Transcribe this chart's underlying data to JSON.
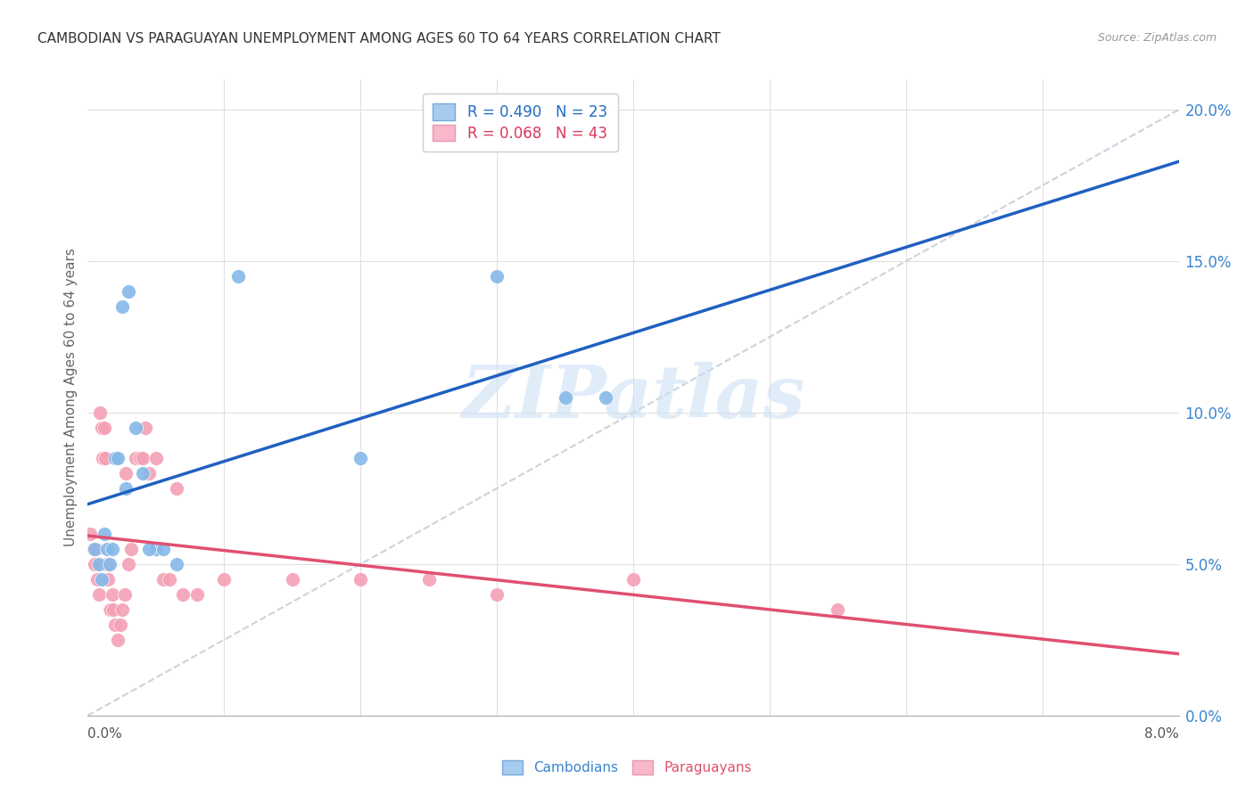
{
  "title": "CAMBODIAN VS PARAGUAYAN UNEMPLOYMENT AMONG AGES 60 TO 64 YEARS CORRELATION CHART",
  "source": "Source: ZipAtlas.com",
  "ylabel": "Unemployment Among Ages 60 to 64 years",
  "xlim": [
    0.0,
    8.0
  ],
  "ylim": [
    0.0,
    21.0
  ],
  "yticks": [
    0,
    5,
    10,
    15,
    20
  ],
  "ytick_labels": [
    "0.0%",
    "5.0%",
    "10.0%",
    "15.0%",
    "20.0%"
  ],
  "cambodian_color": "#85b8e8",
  "paraguayan_color": "#f4a0b5",
  "trendline_cambodian_color": "#2060c0",
  "trendline_paraguayan_color": "#e05070",
  "diagonal_color": "#c8cdd8",
  "background_color": "#ffffff",
  "grid_color": "#e0e0e0",
  "watermark": "ZIPatlas",
  "cambodian_x": [
    0.05,
    0.08,
    0.1,
    0.12,
    0.14,
    0.16,
    0.18,
    0.2,
    0.22,
    0.25,
    0.28,
    0.3,
    0.35,
    0.4,
    0.5,
    0.55,
    0.65,
    1.1,
    2.0,
    3.0,
    3.5,
    3.8,
    0.45
  ],
  "cambodian_y": [
    5.5,
    5.0,
    4.5,
    6.0,
    5.5,
    5.0,
    5.5,
    8.5,
    8.5,
    13.5,
    7.5,
    14.0,
    9.5,
    8.0,
    5.5,
    5.5,
    5.0,
    14.5,
    8.5,
    14.5,
    10.5,
    10.5,
    5.5
  ],
  "paraguayan_x": [
    0.02,
    0.04,
    0.05,
    0.06,
    0.07,
    0.08,
    0.09,
    0.1,
    0.11,
    0.12,
    0.13,
    0.14,
    0.15,
    0.16,
    0.17,
    0.18,
    0.19,
    0.2,
    0.22,
    0.24,
    0.25,
    0.27,
    0.3,
    0.32,
    0.35,
    0.38,
    0.4,
    0.42,
    0.45,
    0.5,
    0.55,
    0.6,
    0.7,
    0.8,
    1.0,
    1.5,
    2.0,
    2.5,
    3.0,
    4.0,
    5.5,
    0.28,
    0.65
  ],
  "paraguayan_y": [
    6.0,
    5.5,
    5.0,
    5.5,
    4.5,
    4.0,
    10.0,
    9.5,
    8.5,
    9.5,
    8.5,
    5.0,
    4.5,
    3.5,
    3.5,
    4.0,
    3.5,
    3.0,
    2.5,
    3.0,
    3.5,
    4.0,
    5.0,
    5.5,
    8.5,
    8.5,
    8.5,
    9.5,
    8.0,
    8.5,
    4.5,
    4.5,
    4.0,
    4.0,
    4.5,
    4.5,
    4.5,
    4.5,
    4.0,
    4.5,
    3.5,
    8.0,
    7.5
  ]
}
